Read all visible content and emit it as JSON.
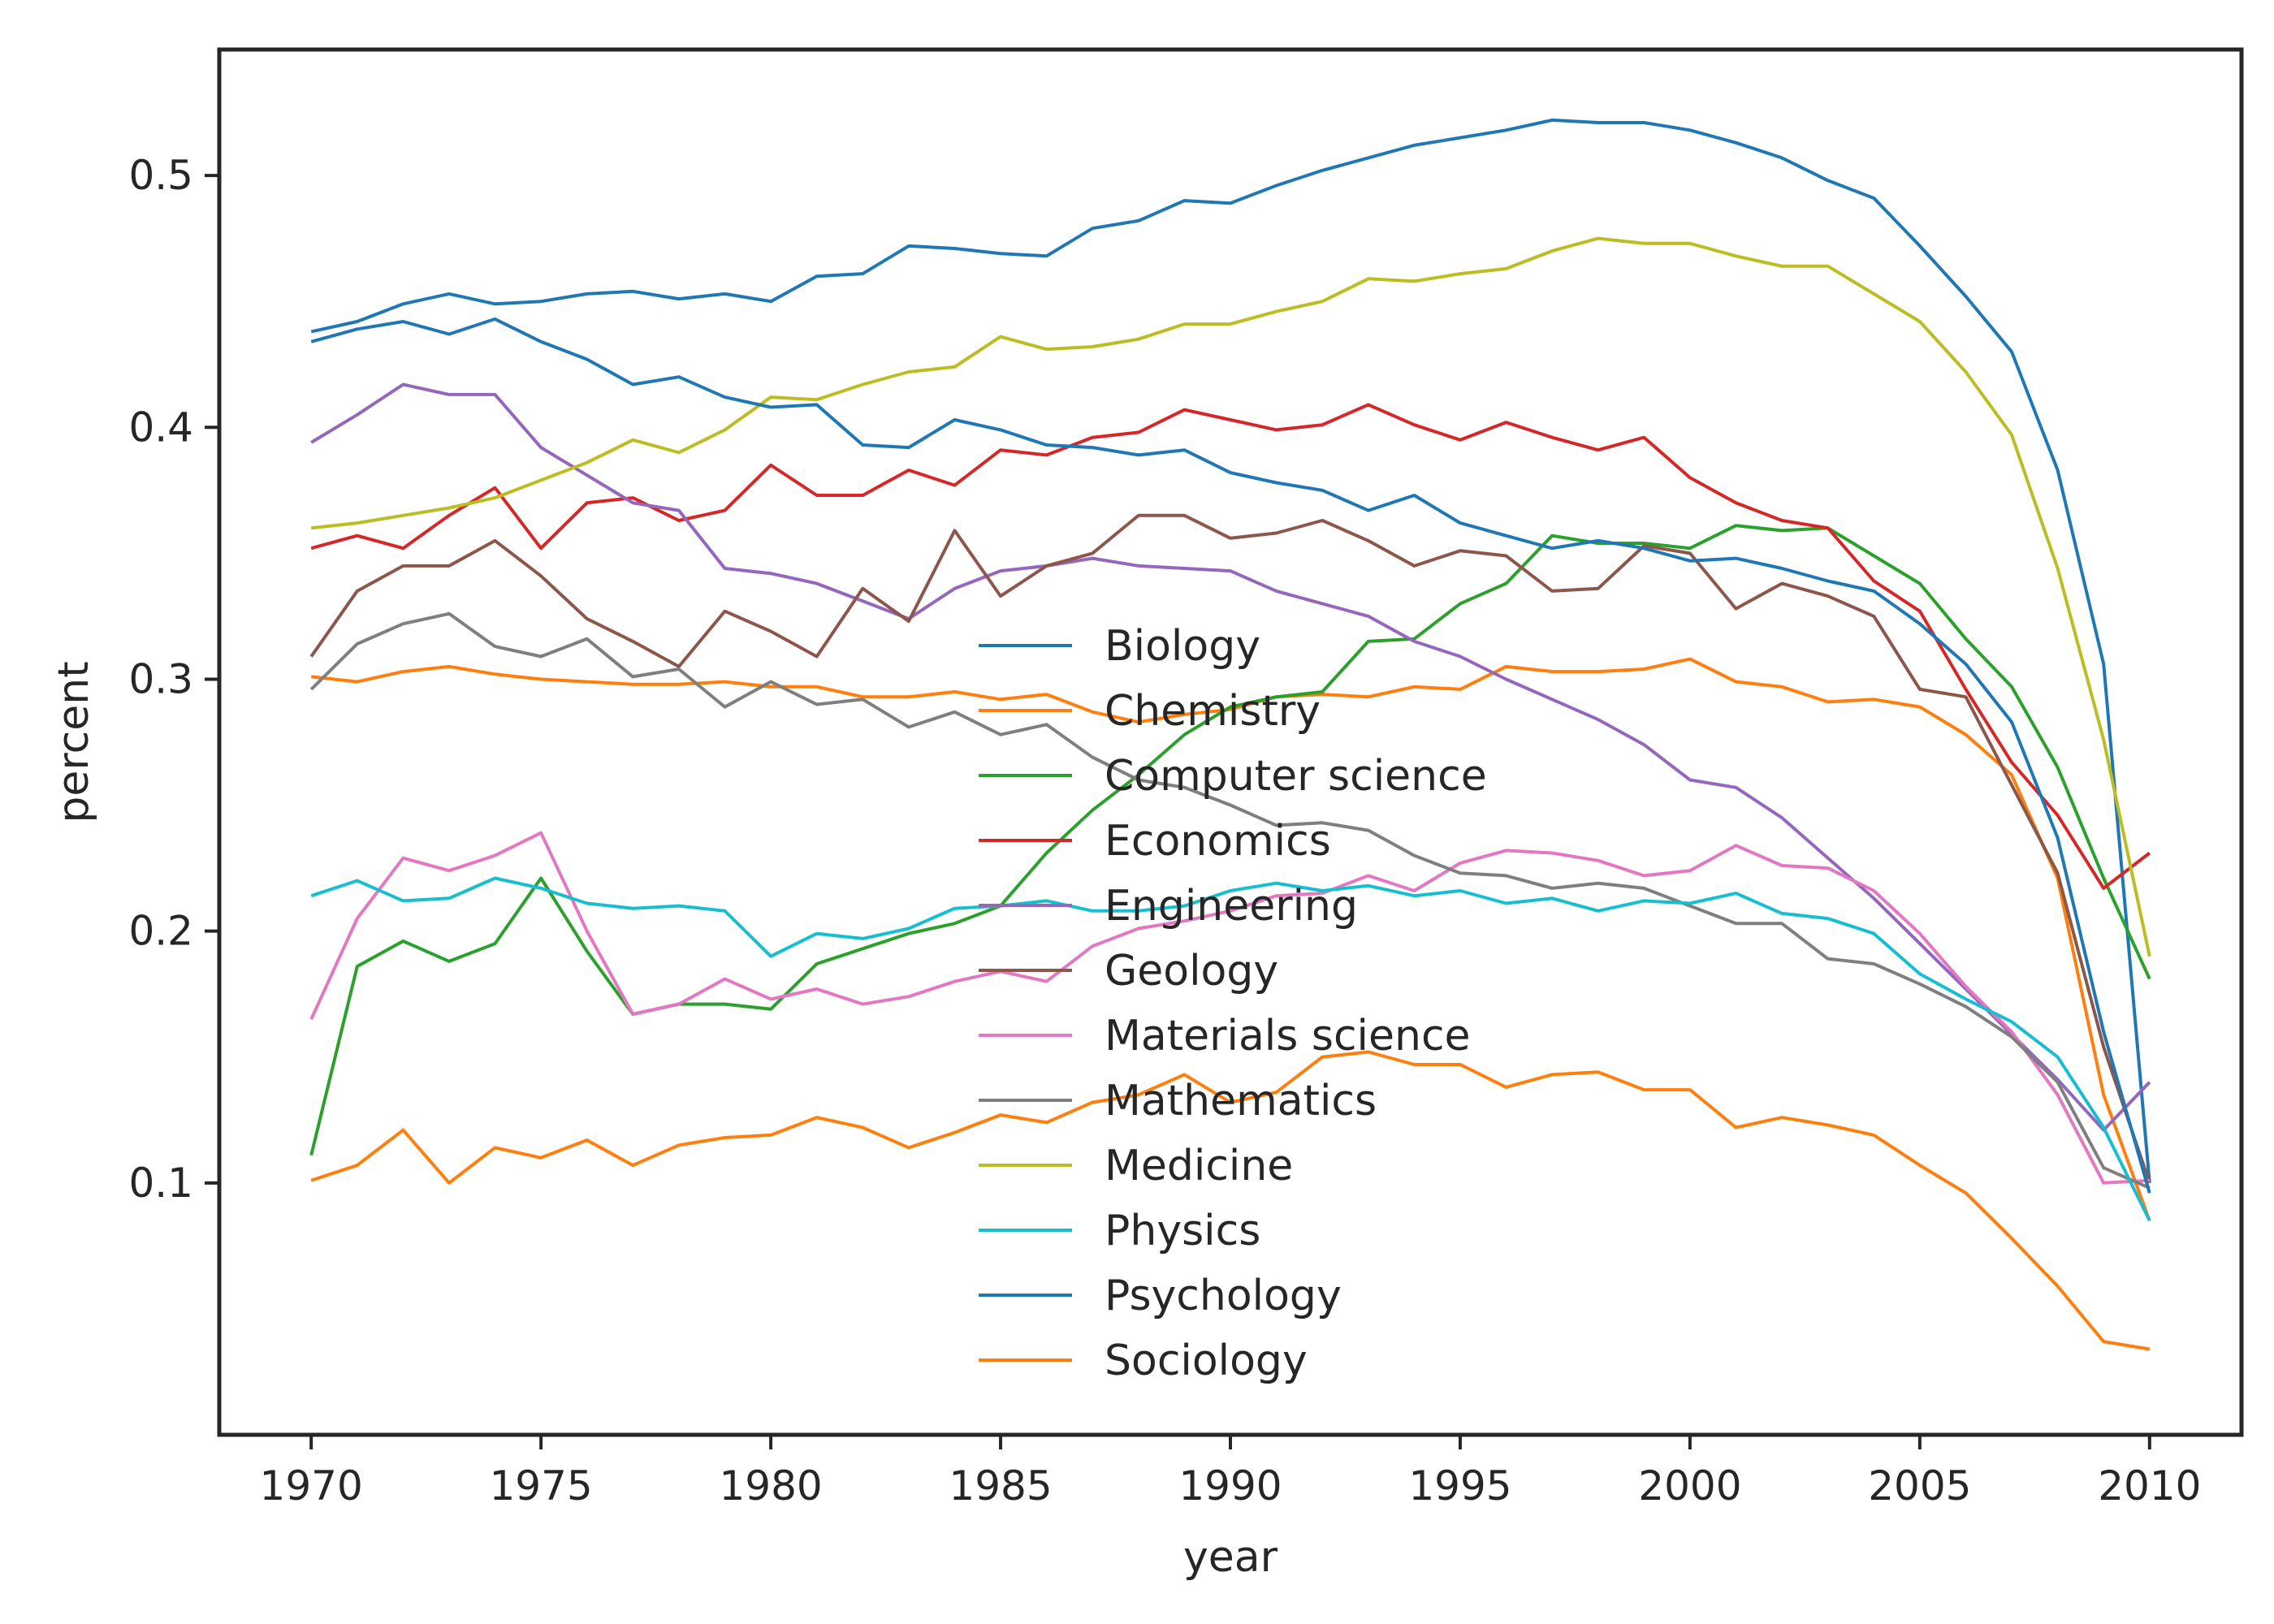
{
  "chart_data": {
    "type": "line",
    "xlabel": "year",
    "ylabel": "percent",
    "xlim": [
      1968,
      2012
    ],
    "ylim": [
      0.0,
      0.55
    ],
    "x_ticks": [
      1970,
      1975,
      1980,
      1985,
      1990,
      1995,
      2000,
      2005,
      2010
    ],
    "x_tick_labels": [
      "1970",
      "1975",
      "1980",
      "1985",
      "1990",
      "1995",
      "2000",
      "2005",
      "2010"
    ],
    "y_ticks": [
      0.1,
      0.2,
      0.3,
      0.4,
      0.5
    ],
    "y_tick_labels": [
      "0.1",
      "0.2",
      "0.3",
      "0.4",
      "0.5"
    ],
    "grid": false,
    "legend_position": "center",
    "x": [
      1970,
      1971,
      1972,
      1973,
      1974,
      1975,
      1976,
      1977,
      1978,
      1979,
      1980,
      1981,
      1982,
      1983,
      1984,
      1985,
      1986,
      1987,
      1988,
      1989,
      1990,
      1991,
      1992,
      1993,
      1994,
      1995,
      1996,
      1997,
      1998,
      1999,
      2000,
      2001,
      2002,
      2003,
      2004,
      2005,
      2006,
      2007,
      2008,
      2009,
      2010
    ],
    "series": [
      {
        "name": "Biology",
        "color": "#1f77b4",
        "values": [
          0.438,
          0.442,
          0.449,
          0.453,
          0.449,
          0.45,
          0.453,
          0.454,
          0.451,
          0.453,
          0.45,
          0.46,
          0.461,
          0.472,
          0.471,
          0.469,
          0.468,
          0.479,
          0.482,
          0.49,
          0.489,
          0.496,
          0.502,
          0.507,
          0.512,
          0.515,
          0.518,
          0.522,
          0.521,
          0.521,
          0.518,
          0.513,
          0.507,
          0.498,
          0.491,
          0.472,
          0.452,
          0.43,
          0.383,
          0.306,
          0.1
        ]
      },
      {
        "name": "Chemistry",
        "color": "#ff7f0e",
        "values": [
          0.301,
          0.299,
          0.303,
          0.305,
          0.302,
          0.3,
          0.299,
          0.298,
          0.298,
          0.299,
          0.297,
          0.297,
          0.293,
          0.293,
          0.295,
          0.292,
          0.294,
          0.287,
          0.283,
          0.286,
          0.288,
          0.293,
          0.294,
          0.293,
          0.297,
          0.296,
          0.305,
          0.303,
          0.303,
          0.304,
          0.308,
          0.299,
          0.297,
          0.291,
          0.292,
          0.289,
          0.278,
          0.262,
          0.221,
          0.135,
          0.085
        ]
      },
      {
        "name": "Computer science",
        "color": "#2ca02c",
        "values": [
          0.111,
          0.186,
          0.196,
          0.188,
          0.195,
          0.221,
          0.192,
          0.167,
          0.171,
          0.171,
          0.169,
          0.187,
          0.193,
          0.199,
          0.203,
          0.21,
          0.231,
          0.248,
          0.262,
          0.278,
          0.289,
          0.293,
          0.295,
          0.315,
          0.316,
          0.33,
          0.338,
          0.357,
          0.354,
          0.354,
          0.352,
          0.361,
          0.359,
          0.36,
          0.349,
          0.338,
          0.316,
          0.297,
          0.265,
          0.221,
          0.181
        ]
      },
      {
        "name": "Economics",
        "color": "#d62728",
        "values": [
          0.352,
          0.357,
          0.352,
          0.365,
          0.376,
          0.352,
          0.37,
          0.372,
          0.363,
          0.367,
          0.385,
          0.373,
          0.373,
          0.383,
          0.377,
          0.391,
          0.389,
          0.396,
          0.398,
          0.407,
          0.403,
          0.399,
          0.401,
          0.409,
          0.401,
          0.395,
          0.402,
          0.396,
          0.391,
          0.396,
          0.38,
          0.37,
          0.363,
          0.36,
          0.339,
          0.327,
          0.296,
          0.267,
          0.246,
          0.217,
          0.231
        ]
      },
      {
        "name": "Engineering",
        "color": "#9467bd",
        "values": [
          0.394,
          0.405,
          0.417,
          0.413,
          0.413,
          0.392,
          0.381,
          0.37,
          0.367,
          0.344,
          0.342,
          0.338,
          0.331,
          0.324,
          0.336,
          0.343,
          0.345,
          0.348,
          0.345,
          0.344,
          0.343,
          0.335,
          0.33,
          0.325,
          0.315,
          0.309,
          0.3,
          0.292,
          0.284,
          0.274,
          0.26,
          0.257,
          0.245,
          0.229,
          0.213,
          0.195,
          0.177,
          0.159,
          0.141,
          0.121,
          0.14
        ]
      },
      {
        "name": "Geology",
        "color": "#8c564b",
        "values": [
          0.309,
          0.335,
          0.345,
          0.345,
          0.355,
          0.341,
          0.324,
          0.315,
          0.305,
          0.327,
          0.319,
          0.309,
          0.336,
          0.323,
          0.359,
          0.333,
          0.345,
          0.35,
          0.365,
          0.365,
          0.356,
          0.358,
          0.363,
          0.355,
          0.345,
          0.351,
          0.349,
          0.335,
          0.336,
          0.353,
          0.35,
          0.328,
          0.338,
          0.333,
          0.325,
          0.296,
          0.293,
          0.258,
          0.223,
          0.154,
          0.1
        ]
      },
      {
        "name": "Materials science",
        "color": "#e377c2",
        "values": [
          0.165,
          0.205,
          0.229,
          0.224,
          0.23,
          0.239,
          0.2,
          0.167,
          0.171,
          0.181,
          0.173,
          0.177,
          0.171,
          0.174,
          0.18,
          0.184,
          0.18,
          0.194,
          0.201,
          0.204,
          0.208,
          0.214,
          0.215,
          0.222,
          0.216,
          0.227,
          0.232,
          0.231,
          0.228,
          0.222,
          0.224,
          0.234,
          0.226,
          0.225,
          0.216,
          0.199,
          0.178,
          0.16,
          0.135,
          0.1,
          0.101
        ]
      },
      {
        "name": "Mathematics",
        "color": "#7f7f7f",
        "values": [
          0.296,
          0.314,
          0.322,
          0.326,
          0.313,
          0.309,
          0.316,
          0.301,
          0.304,
          0.289,
          0.299,
          0.29,
          0.292,
          0.281,
          0.287,
          0.278,
          0.282,
          0.269,
          0.26,
          0.257,
          0.25,
          0.242,
          0.243,
          0.24,
          0.23,
          0.223,
          0.222,
          0.217,
          0.219,
          0.217,
          0.21,
          0.203,
          0.203,
          0.189,
          0.187,
          0.179,
          0.17,
          0.158,
          0.14,
          0.106,
          0.098
        ]
      },
      {
        "name": "Medicine",
        "color": "#bcbd22",
        "values": [
          0.36,
          0.362,
          0.365,
          0.368,
          0.372,
          0.379,
          0.386,
          0.395,
          0.39,
          0.399,
          0.412,
          0.411,
          0.417,
          0.422,
          0.424,
          0.436,
          0.431,
          0.432,
          0.435,
          0.441,
          0.441,
          0.446,
          0.45,
          0.459,
          0.458,
          0.461,
          0.463,
          0.47,
          0.475,
          0.473,
          0.473,
          0.468,
          0.464,
          0.464,
          0.453,
          0.442,
          0.422,
          0.397,
          0.344,
          0.276,
          0.19
        ]
      },
      {
        "name": "Physics",
        "color": "#17becf",
        "values": [
          0.214,
          0.22,
          0.212,
          0.213,
          0.221,
          0.217,
          0.211,
          0.209,
          0.21,
          0.208,
          0.19,
          0.199,
          0.197,
          0.201,
          0.209,
          0.21,
          0.212,
          0.208,
          0.208,
          0.21,
          0.216,
          0.219,
          0.216,
          0.218,
          0.214,
          0.216,
          0.211,
          0.213,
          0.208,
          0.212,
          0.211,
          0.215,
          0.207,
          0.205,
          0.199,
          0.183,
          0.173,
          0.164,
          0.15,
          0.122,
          0.085
        ]
      },
      {
        "name": "Psychology",
        "color": "#1f77b4",
        "values": [
          0.434,
          0.439,
          0.442,
          0.437,
          0.443,
          0.434,
          0.427,
          0.417,
          0.42,
          0.412,
          0.408,
          0.409,
          0.393,
          0.392,
          0.403,
          0.399,
          0.393,
          0.392,
          0.389,
          0.391,
          0.382,
          0.378,
          0.375,
          0.367,
          0.373,
          0.362,
          0.357,
          0.352,
          0.355,
          0.352,
          0.347,
          0.348,
          0.344,
          0.339,
          0.335,
          0.322,
          0.306,
          0.283,
          0.237,
          0.16,
          0.096
        ]
      },
      {
        "name": "Sociology",
        "color": "#ff7f0e",
        "values": [
          0.101,
          0.107,
          0.121,
          0.1,
          0.114,
          0.11,
          0.117,
          0.107,
          0.115,
          0.118,
          0.119,
          0.126,
          0.122,
          0.114,
          0.12,
          0.127,
          0.124,
          0.132,
          0.135,
          0.143,
          0.132,
          0.136,
          0.15,
          0.152,
          0.147,
          0.147,
          0.138,
          0.143,
          0.144,
          0.137,
          0.137,
          0.122,
          0.126,
          0.123,
          0.119,
          0.107,
          0.096,
          0.078,
          0.059,
          0.037,
          0.034
        ]
      }
    ]
  }
}
